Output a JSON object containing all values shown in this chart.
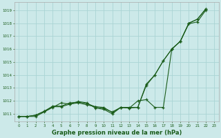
{
  "title": "Graphe pression niveau de la mer (hPa)",
  "background_color": "#cce9e9",
  "grid_color": "#aad4d4",
  "line_color": "#1a5c1a",
  "xlim": [
    -0.5,
    23.5
  ],
  "ylim": [
    1010.4,
    1019.6
  ],
  "yticks": [
    1011,
    1012,
    1013,
    1014,
    1015,
    1016,
    1017,
    1018,
    1019
  ],
  "xticks": [
    0,
    1,
    2,
    3,
    4,
    5,
    6,
    7,
    8,
    9,
    10,
    11,
    12,
    13,
    14,
    15,
    16,
    17,
    18,
    19,
    20,
    21,
    22,
    23
  ],
  "line1_x": [
    0,
    1,
    2,
    3,
    4,
    5,
    6,
    7,
    8,
    9,
    10,
    11,
    12,
    13,
    14,
    15,
    16,
    17,
    18,
    19,
    20,
    21,
    22
  ],
  "line1_y": [
    1010.8,
    1010.8,
    1010.9,
    1011.2,
    1011.6,
    1011.6,
    1011.85,
    1011.9,
    1011.8,
    1011.55,
    1011.5,
    1011.1,
    1011.5,
    1011.5,
    1011.5,
    1013.3,
    1014.0,
    1015.1,
    1016.0,
    1016.6,
    1018.0,
    1018.3,
    1019.1
  ],
  "line2_x": [
    0,
    1,
    2,
    3,
    4,
    5,
    6,
    7,
    8,
    9,
    10,
    11,
    12,
    13,
    14,
    15,
    16,
    17,
    18,
    19,
    20,
    21,
    22
  ],
  "line2_y": [
    1010.8,
    1010.8,
    1010.9,
    1011.2,
    1011.55,
    1011.55,
    1011.75,
    1011.85,
    1011.7,
    1011.55,
    1011.4,
    1011.15,
    1011.5,
    1011.45,
    1011.5,
    1013.2,
    1014.0,
    1015.1,
    1016.0,
    1016.6,
    1017.95,
    1018.1,
    1019.0
  ],
  "line3_x": [
    0,
    1,
    2,
    3,
    4,
    5,
    6,
    7,
    8,
    9,
    10,
    11,
    12,
    13,
    14,
    15,
    16,
    17,
    18,
    19,
    20,
    21,
    22
  ],
  "line3_y": [
    1010.8,
    1010.8,
    1010.8,
    1011.15,
    1011.5,
    1011.85,
    1011.75,
    1011.95,
    1011.85,
    1011.45,
    1011.35,
    1011.0,
    1011.5,
    1011.45,
    1012.0,
    1012.1,
    1011.5,
    1011.5,
    1016.0,
    1016.6,
    1018.0,
    1018.3,
    1019.1
  ]
}
